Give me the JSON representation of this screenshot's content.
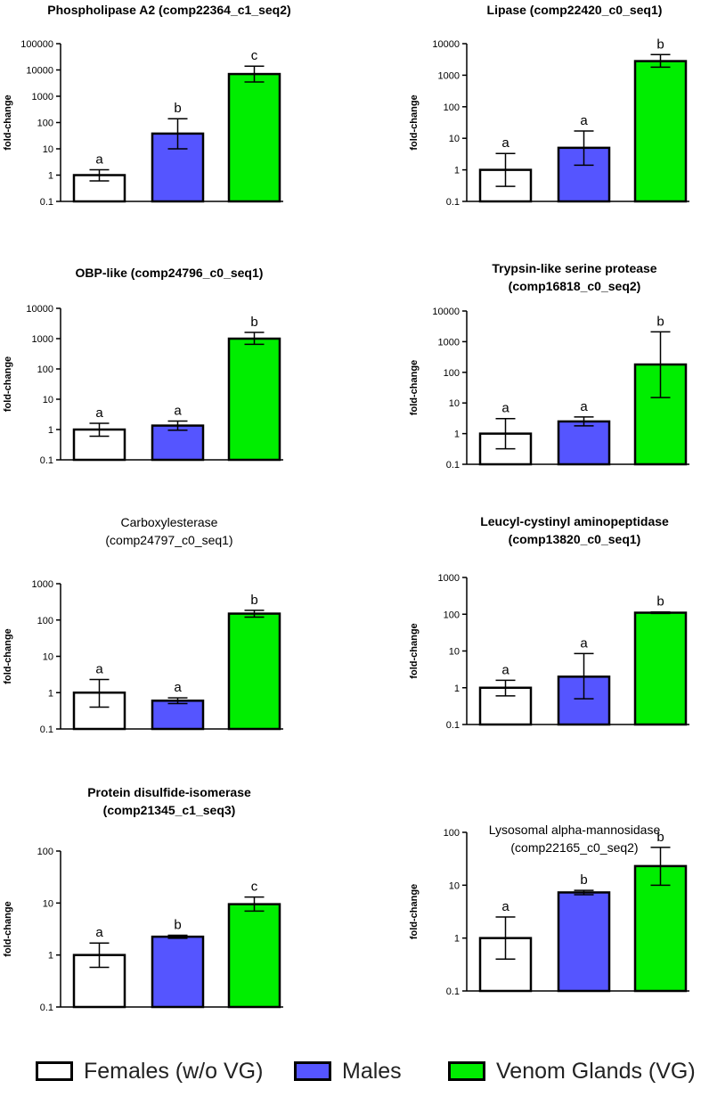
{
  "chart_data": [
    {
      "type": "bar",
      "scale": "log",
      "title": "Phospholipase A2 (comp22364_c1_seq2)",
      "title_bold": true,
      "categories": [
        "Females (w/o VG)",
        "Males",
        "Venom Glands (VG)"
      ],
      "values": [
        1,
        38,
        7000
      ],
      "error_low": [
        0.6,
        10,
        3500
      ],
      "error_high": [
        1.6,
        140,
        14000
      ],
      "letters": [
        "a",
        "b",
        "c"
      ],
      "ylabel": "fold-change",
      "ylim": [
        0.1,
        100000
      ],
      "ticks": [
        "0.1",
        "1",
        "10",
        "100",
        "1000",
        "10000",
        "100000"
      ]
    },
    {
      "type": "bar",
      "scale": "log",
      "title": "Lipase (comp22420_c0_seq1)",
      "title_bold": true,
      "categories": [
        "Females (w/o VG)",
        "Males",
        "Venom Glands (VG)"
      ],
      "values": [
        1,
        5,
        2800
      ],
      "error_low": [
        0.3,
        1.4,
        1800
      ],
      "error_high": [
        3.3,
        17,
        4500
      ],
      "letters": [
        "a",
        "a",
        "b"
      ],
      "ylabel": "fold-change",
      "ylim": [
        0.1,
        10000
      ],
      "ticks": [
        "0.1",
        "1",
        "10",
        "100",
        "1000",
        "10000"
      ]
    },
    {
      "type": "bar",
      "scale": "log",
      "title": "OBP-like (comp24796_c0_seq1)",
      "title_bold": true,
      "categories": [
        "Females (w/o VG)",
        "Males",
        "Venom Glands (VG)"
      ],
      "values": [
        1,
        1.35,
        1000
      ],
      "error_low": [
        0.6,
        0.95,
        650
      ],
      "error_high": [
        1.6,
        1.9,
        1600
      ],
      "letters": [
        "a",
        "a",
        "b"
      ],
      "ylabel": "fold-change",
      "ylim": [
        0.1,
        10000
      ],
      "ticks": [
        "0.1",
        "1",
        "10",
        "100",
        "1000",
        "10000"
      ]
    },
    {
      "type": "bar",
      "scale": "log",
      "title": "Trypsin-like serine protease (comp16818_c0_seq2)",
      "title_bold": true,
      "categories": [
        "Females (w/o VG)",
        "Males",
        "Venom Glands (VG)"
      ],
      "values": [
        1,
        2.5,
        180
      ],
      "error_low": [
        0.32,
        1.8,
        15
      ],
      "error_high": [
        3.1,
        3.5,
        2100
      ],
      "letters": [
        "a",
        "a",
        "b"
      ],
      "ylabel": "fold-change",
      "ylim": [
        0.1,
        10000
      ],
      "ticks": [
        "0.1",
        "1",
        "10",
        "100",
        "1000",
        "10000"
      ]
    },
    {
      "type": "bar",
      "scale": "log",
      "title": "Carboxylesterase (comp24797_c0_seq1)",
      "title_bold": false,
      "categories": [
        "Females (w/o VG)",
        "Males",
        "Venom Glands (VG)"
      ],
      "values": [
        1,
        0.6,
        150
      ],
      "error_low": [
        0.4,
        0.5,
        120
      ],
      "error_high": [
        2.3,
        0.72,
        185
      ],
      "letters": [
        "a",
        "a",
        "b"
      ],
      "ylabel": "fold-change",
      "ylim": [
        0.1,
        1000
      ],
      "ticks": [
        "0.1",
        "1",
        "10",
        "100",
        "1000"
      ]
    },
    {
      "type": "bar",
      "scale": "log",
      "title": "Leucyl-cystinyl aminopeptidase (comp13820_c0_seq1)",
      "title_bold": true,
      "categories": [
        "Females (w/o VG)",
        "Males",
        "Venom Glands (VG)"
      ],
      "values": [
        1,
        2,
        110
      ],
      "error_low": [
        0.6,
        0.5,
        105
      ],
      "error_high": [
        1.6,
        8.5,
        115
      ],
      "letters": [
        "a",
        "a",
        "b"
      ],
      "ylabel": "fold-change",
      "ylim": [
        0.1,
        1000
      ],
      "ticks": [
        "0.1",
        "1",
        "10",
        "100",
        "1000"
      ]
    },
    {
      "type": "bar",
      "scale": "log",
      "title": "Protein disulfide-isomerase (comp21345_c1_seq3)",
      "title_bold": true,
      "categories": [
        "Females (w/o VG)",
        "Males",
        "Venom Glands (VG)"
      ],
      "values": [
        1,
        2.25,
        9.5
      ],
      "error_low": [
        0.58,
        2.1,
        7
      ],
      "error_high": [
        1.7,
        2.4,
        13
      ],
      "letters": [
        "a",
        "b",
        "c"
      ],
      "ylabel": "fold-change",
      "ylim": [
        0.1,
        100
      ],
      "ticks": [
        "0.1",
        "1",
        "10",
        "100"
      ]
    },
    {
      "type": "bar",
      "scale": "log",
      "title": "Lysosomal alpha-mannosidase (comp22165_c0_seq2)",
      "title_bold": false,
      "categories": [
        "Females (w/o VG)",
        "Males",
        "Venom Glands (VG)"
      ],
      "values": [
        1,
        7.3,
        23
      ],
      "error_low": [
        0.4,
        6.6,
        10
      ],
      "error_high": [
        2.5,
        8,
        52
      ],
      "letters": [
        "a",
        "b",
        "b"
      ],
      "ylabel": "fold-change",
      "ylim": [
        0.1,
        100
      ],
      "ticks": [
        "0.1",
        "1",
        "10",
        "100"
      ]
    }
  ],
  "legend": {
    "items": [
      {
        "label": "Females (w/o VG)",
        "color": "#ffffff"
      },
      {
        "label": "Males",
        "color": "#5555ff"
      },
      {
        "label": "Venom Glands (VG)",
        "color": "#00ee00"
      }
    ]
  }
}
